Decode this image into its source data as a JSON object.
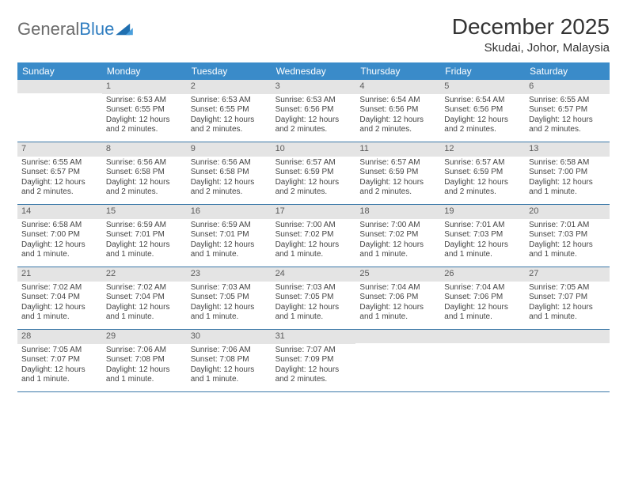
{
  "logo": {
    "word1": "General",
    "word2": "Blue"
  },
  "title": "December 2025",
  "location": "Skudai, Johor, Malaysia",
  "colors": {
    "header_bg": "#3a8bc9",
    "header_text": "#ffffff",
    "daynum_bg": "#e4e4e4",
    "daynum_text": "#5a5a5a",
    "week_border": "#3a78a8",
    "body_text": "#444444",
    "logo_gray": "#6a6a6a",
    "logo_blue": "#2f7dc0"
  },
  "day_names": [
    "Sunday",
    "Monday",
    "Tuesday",
    "Wednesday",
    "Thursday",
    "Friday",
    "Saturday"
  ],
  "weeks": [
    [
      {
        "n": "",
        "sr": "",
        "ss": "",
        "dl": ""
      },
      {
        "n": "1",
        "sr": "Sunrise: 6:53 AM",
        "ss": "Sunset: 6:55 PM",
        "dl": "Daylight: 12 hours and 2 minutes."
      },
      {
        "n": "2",
        "sr": "Sunrise: 6:53 AM",
        "ss": "Sunset: 6:55 PM",
        "dl": "Daylight: 12 hours and 2 minutes."
      },
      {
        "n": "3",
        "sr": "Sunrise: 6:53 AM",
        "ss": "Sunset: 6:56 PM",
        "dl": "Daylight: 12 hours and 2 minutes."
      },
      {
        "n": "4",
        "sr": "Sunrise: 6:54 AM",
        "ss": "Sunset: 6:56 PM",
        "dl": "Daylight: 12 hours and 2 minutes."
      },
      {
        "n": "5",
        "sr": "Sunrise: 6:54 AM",
        "ss": "Sunset: 6:56 PM",
        "dl": "Daylight: 12 hours and 2 minutes."
      },
      {
        "n": "6",
        "sr": "Sunrise: 6:55 AM",
        "ss": "Sunset: 6:57 PM",
        "dl": "Daylight: 12 hours and 2 minutes."
      }
    ],
    [
      {
        "n": "7",
        "sr": "Sunrise: 6:55 AM",
        "ss": "Sunset: 6:57 PM",
        "dl": "Daylight: 12 hours and 2 minutes."
      },
      {
        "n": "8",
        "sr": "Sunrise: 6:56 AM",
        "ss": "Sunset: 6:58 PM",
        "dl": "Daylight: 12 hours and 2 minutes."
      },
      {
        "n": "9",
        "sr": "Sunrise: 6:56 AM",
        "ss": "Sunset: 6:58 PM",
        "dl": "Daylight: 12 hours and 2 minutes."
      },
      {
        "n": "10",
        "sr": "Sunrise: 6:57 AM",
        "ss": "Sunset: 6:59 PM",
        "dl": "Daylight: 12 hours and 2 minutes."
      },
      {
        "n": "11",
        "sr": "Sunrise: 6:57 AM",
        "ss": "Sunset: 6:59 PM",
        "dl": "Daylight: 12 hours and 2 minutes."
      },
      {
        "n": "12",
        "sr": "Sunrise: 6:57 AM",
        "ss": "Sunset: 6:59 PM",
        "dl": "Daylight: 12 hours and 2 minutes."
      },
      {
        "n": "13",
        "sr": "Sunrise: 6:58 AM",
        "ss": "Sunset: 7:00 PM",
        "dl": "Daylight: 12 hours and 1 minute."
      }
    ],
    [
      {
        "n": "14",
        "sr": "Sunrise: 6:58 AM",
        "ss": "Sunset: 7:00 PM",
        "dl": "Daylight: 12 hours and 1 minute."
      },
      {
        "n": "15",
        "sr": "Sunrise: 6:59 AM",
        "ss": "Sunset: 7:01 PM",
        "dl": "Daylight: 12 hours and 1 minute."
      },
      {
        "n": "16",
        "sr": "Sunrise: 6:59 AM",
        "ss": "Sunset: 7:01 PM",
        "dl": "Daylight: 12 hours and 1 minute."
      },
      {
        "n": "17",
        "sr": "Sunrise: 7:00 AM",
        "ss": "Sunset: 7:02 PM",
        "dl": "Daylight: 12 hours and 1 minute."
      },
      {
        "n": "18",
        "sr": "Sunrise: 7:00 AM",
        "ss": "Sunset: 7:02 PM",
        "dl": "Daylight: 12 hours and 1 minute."
      },
      {
        "n": "19",
        "sr": "Sunrise: 7:01 AM",
        "ss": "Sunset: 7:03 PM",
        "dl": "Daylight: 12 hours and 1 minute."
      },
      {
        "n": "20",
        "sr": "Sunrise: 7:01 AM",
        "ss": "Sunset: 7:03 PM",
        "dl": "Daylight: 12 hours and 1 minute."
      }
    ],
    [
      {
        "n": "21",
        "sr": "Sunrise: 7:02 AM",
        "ss": "Sunset: 7:04 PM",
        "dl": "Daylight: 12 hours and 1 minute."
      },
      {
        "n": "22",
        "sr": "Sunrise: 7:02 AM",
        "ss": "Sunset: 7:04 PM",
        "dl": "Daylight: 12 hours and 1 minute."
      },
      {
        "n": "23",
        "sr": "Sunrise: 7:03 AM",
        "ss": "Sunset: 7:05 PM",
        "dl": "Daylight: 12 hours and 1 minute."
      },
      {
        "n": "24",
        "sr": "Sunrise: 7:03 AM",
        "ss": "Sunset: 7:05 PM",
        "dl": "Daylight: 12 hours and 1 minute."
      },
      {
        "n": "25",
        "sr": "Sunrise: 7:04 AM",
        "ss": "Sunset: 7:06 PM",
        "dl": "Daylight: 12 hours and 1 minute."
      },
      {
        "n": "26",
        "sr": "Sunrise: 7:04 AM",
        "ss": "Sunset: 7:06 PM",
        "dl": "Daylight: 12 hours and 1 minute."
      },
      {
        "n": "27",
        "sr": "Sunrise: 7:05 AM",
        "ss": "Sunset: 7:07 PM",
        "dl": "Daylight: 12 hours and 1 minute."
      }
    ],
    [
      {
        "n": "28",
        "sr": "Sunrise: 7:05 AM",
        "ss": "Sunset: 7:07 PM",
        "dl": "Daylight: 12 hours and 1 minute."
      },
      {
        "n": "29",
        "sr": "Sunrise: 7:06 AM",
        "ss": "Sunset: 7:08 PM",
        "dl": "Daylight: 12 hours and 1 minute."
      },
      {
        "n": "30",
        "sr": "Sunrise: 7:06 AM",
        "ss": "Sunset: 7:08 PM",
        "dl": "Daylight: 12 hours and 1 minute."
      },
      {
        "n": "31",
        "sr": "Sunrise: 7:07 AM",
        "ss": "Sunset: 7:09 PM",
        "dl": "Daylight: 12 hours and 2 minutes."
      },
      {
        "n": "",
        "sr": "",
        "ss": "",
        "dl": ""
      },
      {
        "n": "",
        "sr": "",
        "ss": "",
        "dl": ""
      },
      {
        "n": "",
        "sr": "",
        "ss": "",
        "dl": ""
      }
    ]
  ]
}
